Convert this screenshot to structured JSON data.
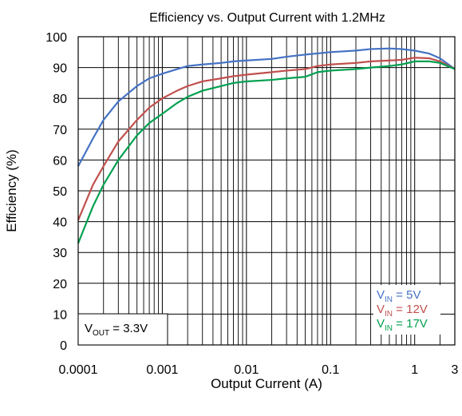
{
  "chart_data": {
    "type": "line",
    "title": "Efficiency vs. Output Current with 1.2MHz",
    "xlabel": "Output Current (A)",
    "ylabel": "Efficiency (%)",
    "x_scale": "log",
    "xlim": [
      0.0001,
      3
    ],
    "ylim": [
      0,
      100
    ],
    "x_ticks": [
      0.0001,
      0.001,
      0.01,
      0.1,
      1,
      3
    ],
    "x_tick_labels": [
      "0.0001",
      "0.001",
      "0.01",
      "0.1",
      "1",
      "3"
    ],
    "y_ticks": [
      0,
      10,
      20,
      30,
      40,
      50,
      60,
      70,
      80,
      90,
      100
    ],
    "y_tick_labels": [
      "0",
      "10",
      "20",
      "30",
      "40",
      "50",
      "60",
      "70",
      "80",
      "90",
      "100"
    ],
    "grid": true,
    "annotation": {
      "main": "V",
      "sub": "OUT",
      "rest": " = 3.3V"
    },
    "legend_position": "bottom-right",
    "series": [
      {
        "name_main": "V",
        "name_sub": "IN",
        "name_rest": " = 5V",
        "color": "#4472c4",
        "x": [
          0.0001,
          0.00015,
          0.0002,
          0.0003,
          0.0005,
          0.0007,
          0.001,
          0.0015,
          0.002,
          0.003,
          0.005,
          0.007,
          0.01,
          0.02,
          0.03,
          0.05,
          0.1,
          0.2,
          0.3,
          0.5,
          0.7,
          1,
          1.5,
          2,
          3
        ],
        "y": [
          58,
          67,
          73,
          79,
          84,
          86.5,
          88,
          89.5,
          90.5,
          91,
          91.5,
          92,
          92.3,
          92.8,
          93.5,
          94.2,
          95,
          95.5,
          96,
          96.2,
          96,
          95.5,
          94.5,
          93,
          89.5
        ]
      },
      {
        "name_main": "V",
        "name_sub": "IN",
        "name_rest": " = 12V",
        "color": "#c0504d",
        "x": [
          0.0001,
          0.00015,
          0.0002,
          0.0003,
          0.0005,
          0.0007,
          0.001,
          0.0015,
          0.002,
          0.003,
          0.005,
          0.007,
          0.01,
          0.02,
          0.03,
          0.05,
          0.07,
          0.1,
          0.2,
          0.3,
          0.5,
          0.7,
          1,
          1.5,
          2,
          3
        ],
        "y": [
          40.5,
          52,
          58,
          66,
          73,
          77,
          80,
          82.5,
          84,
          85.5,
          86.5,
          87.2,
          87.7,
          88.5,
          89,
          89.5,
          90.5,
          91,
          91.5,
          92,
          92.3,
          92.5,
          93.2,
          93,
          92,
          89.5
        ]
      },
      {
        "name_main": "V",
        "name_sub": "IN",
        "name_rest": " = 17V",
        "color": "#00a050",
        "x": [
          0.0001,
          0.00015,
          0.0002,
          0.0003,
          0.0005,
          0.0007,
          0.001,
          0.0015,
          0.002,
          0.003,
          0.005,
          0.007,
          0.01,
          0.02,
          0.03,
          0.05,
          0.07,
          0.1,
          0.2,
          0.3,
          0.5,
          0.7,
          1,
          1.5,
          2,
          3
        ],
        "y": [
          33,
          45,
          52,
          60,
          68,
          72,
          75,
          78.5,
          80.5,
          82.5,
          84,
          85,
          85.5,
          86,
          86.5,
          87,
          88.5,
          89,
          89.5,
          90,
          90.5,
          91,
          92,
          92,
          91.5,
          89.5
        ]
      }
    ]
  }
}
